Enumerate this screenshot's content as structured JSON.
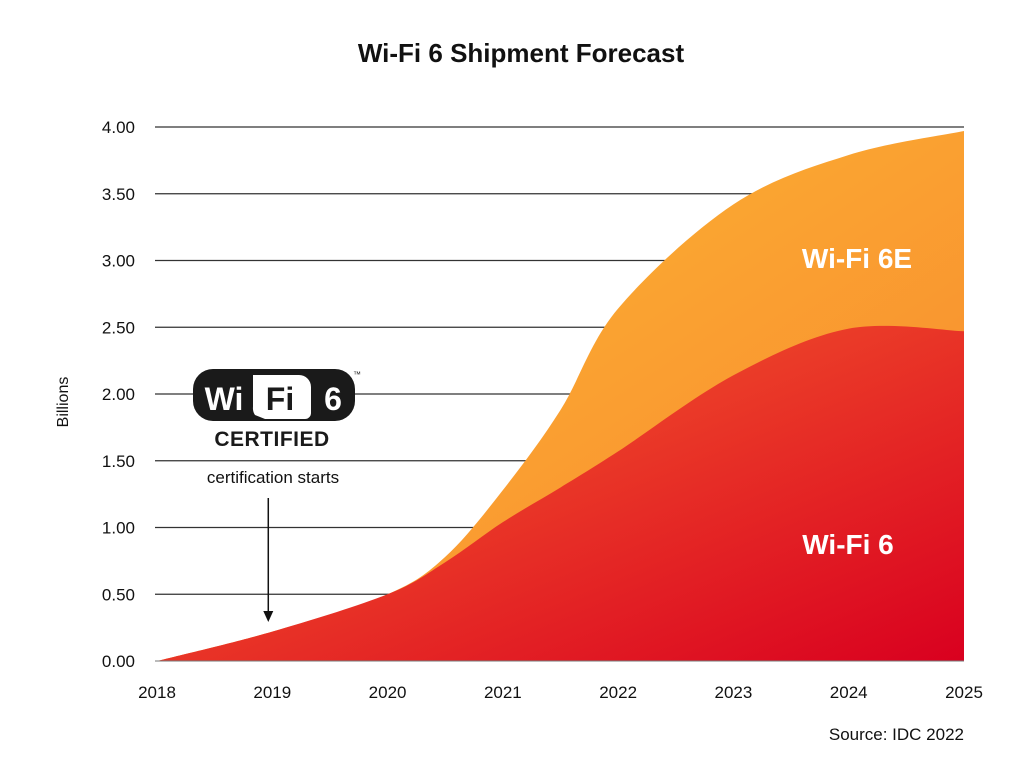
{
  "chart_data": {
    "type": "area",
    "stacked": true,
    "title": "Wi-Fi 6 Shipment Forecast",
    "xlabel": "",
    "ylabel": "Billions",
    "x": [
      2018,
      2019,
      2020,
      2020.5,
      2021,
      2021.5,
      2022,
      2023,
      2024,
      2025
    ],
    "xticks": [
      "2018",
      "2019",
      "2020",
      "2021",
      "2022",
      "2023",
      "2024",
      "2025"
    ],
    "yticks": [
      "0.00",
      "0.50",
      "1.00",
      "1.50",
      "2.00",
      "2.50",
      "3.00",
      "3.50",
      "4.00"
    ],
    "xlim": [
      2018,
      2025
    ],
    "ylim": [
      0,
      4
    ],
    "grid": "horizontal",
    "series": [
      {
        "name": "Wi-Fi 6",
        "values": [
          0,
          0.22,
          0.5,
          0.74,
          1.04,
          1.3,
          1.57,
          2.14,
          2.49,
          2.47
        ],
        "colors": [
          "#f8692f",
          "#d9001f"
        ]
      },
      {
        "name": "Wi-Fi 6E",
        "values": [
          0,
          0,
          0,
          0.04,
          0.24,
          0.58,
          1.07,
          1.28,
          1.3,
          1.5
        ],
        "colors": [
          "#fdbb33",
          "#f7862f"
        ]
      }
    ],
    "annotation": {
      "text": "certification starts",
      "x": 2019
    },
    "source": "Source: IDC 2022"
  },
  "logo": {
    "text_wi": "Wi",
    "text_fi": "Fi",
    "text_6": "6",
    "text_certified": "CERTIFIED",
    "tm": "™"
  }
}
